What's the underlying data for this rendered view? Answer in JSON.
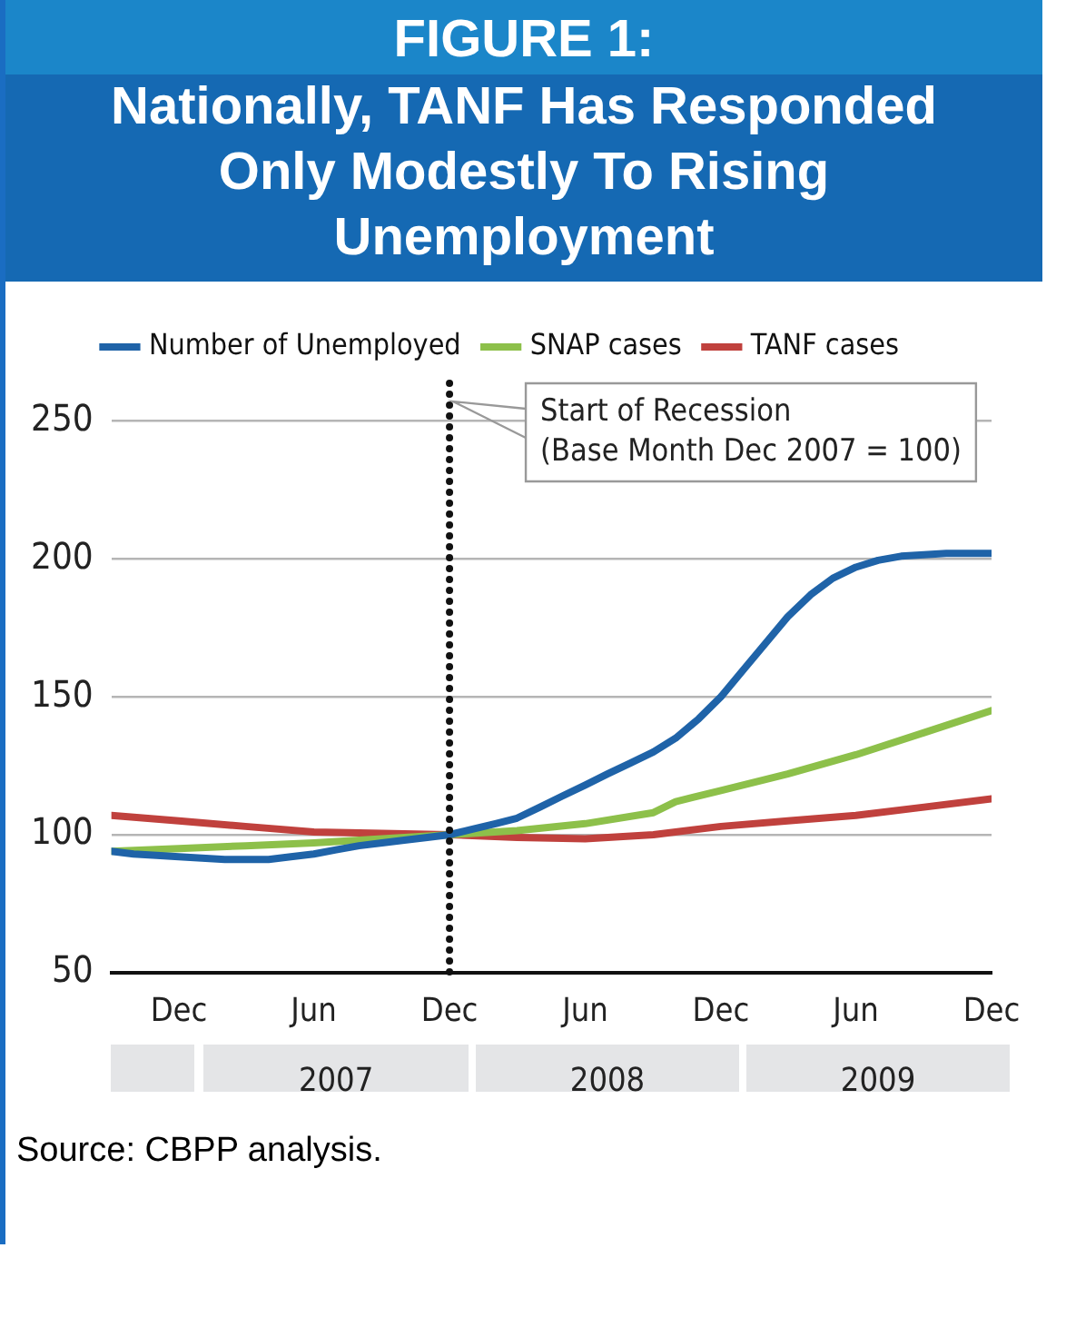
{
  "chart_data": {
    "type": "line",
    "title": "FIGURE 1:",
    "subtitle": "Nationally, TANF Has Responded Only Modestly To Rising Unemployment",
    "xlim": [
      "2006-09",
      "2009-12"
    ],
    "xticks": [
      {
        "value": "2006-12",
        "label": "Dec"
      },
      {
        "value": "2007-06",
        "label": "Jun"
      },
      {
        "value": "2007-12",
        "label": "Dec"
      },
      {
        "value": "2008-06",
        "label": "Jun"
      },
      {
        "value": "2008-12",
        "label": "Dec"
      },
      {
        "value": "2009-06",
        "label": "Jun"
      },
      {
        "value": "2009-12",
        "label": "Dec"
      }
    ],
    "x2lim": [
      "2006-09",
      "2009-12"
    ],
    "x2ticks": [
      {
        "value": "2007-07",
        "label": "2007"
      },
      {
        "value": "2008-07",
        "label": "2008"
      },
      {
        "value": "2009-07",
        "label": "2009"
      }
    ],
    "ylim": [
      50,
      265
    ],
    "yticks": [
      50,
      100,
      150,
      200,
      250
    ],
    "grid": "y",
    "legend": "top",
    "line_style": "solid",
    "marker": "none",
    "series": [
      {
        "name": "Number of Unemployed",
        "color": "#1f63a8",
        "x": [
          "2006-09",
          "2006-10",
          "2006-11",
          "2006-12",
          "2007-01",
          "2007-02",
          "2007-03",
          "2007-04",
          "2007-05",
          "2007-06",
          "2007-07",
          "2007-08",
          "2007-09",
          "2007-10",
          "2007-11",
          "2007-12",
          "2008-01",
          "2008-02",
          "2008-03",
          "2008-04",
          "2008-05",
          "2008-06",
          "2008-07",
          "2008-08",
          "2008-09",
          "2008-10",
          "2008-11",
          "2008-12",
          "2009-01",
          "2009-02",
          "2009-03",
          "2009-04",
          "2009-05",
          "2009-06",
          "2009-07",
          "2009-08",
          "2009-09",
          "2009-10",
          "2009-11",
          "2009-12"
        ],
        "values": [
          94,
          93,
          92.5,
          92,
          91.5,
          91,
          91,
          91,
          92,
          93,
          94.5,
          96,
          97,
          98,
          99,
          100,
          102,
          104,
          106,
          110,
          114,
          118,
          122,
          126,
          130,
          135,
          142,
          150,
          160,
          170,
          179,
          187,
          193,
          197,
          199.5,
          201,
          201.5,
          202,
          202,
          202
        ]
      },
      {
        "name": "SNAP cases",
        "color": "#8dc04a",
        "x": [
          "2006-09",
          "2006-12",
          "2007-03",
          "2007-06",
          "2007-09",
          "2007-12",
          "2008-03",
          "2008-06",
          "2008-09",
          "2008-10",
          "2008-12",
          "2009-03",
          "2009-06",
          "2009-09",
          "2009-12"
        ],
        "values": [
          94,
          95,
          96,
          97,
          98.5,
          100,
          101.5,
          104,
          108,
          112,
          116,
          122,
          129,
          137,
          145
        ]
      },
      {
        "name": "TANF cases",
        "color": "#c0413d",
        "x": [
          "2006-09",
          "2006-12",
          "2007-03",
          "2007-06",
          "2007-09",
          "2007-12",
          "2008-03",
          "2008-06",
          "2008-09",
          "2008-12",
          "2009-03",
          "2009-06",
          "2009-09",
          "2009-12"
        ],
        "values": [
          107,
          105,
          103,
          101,
          100.5,
          100,
          99,
          98.5,
          100,
          103,
          105,
          107,
          110,
          113
        ]
      }
    ],
    "ref_lines": [
      {
        "axis": "x",
        "value": "2007-12",
        "label": "Start of Recession\n(Base Month Dec 2007 = 100)",
        "color": "#111111",
        "line_style": "dotted"
      }
    ],
    "annotations": [
      "Source: CBPP analysis."
    ]
  }
}
